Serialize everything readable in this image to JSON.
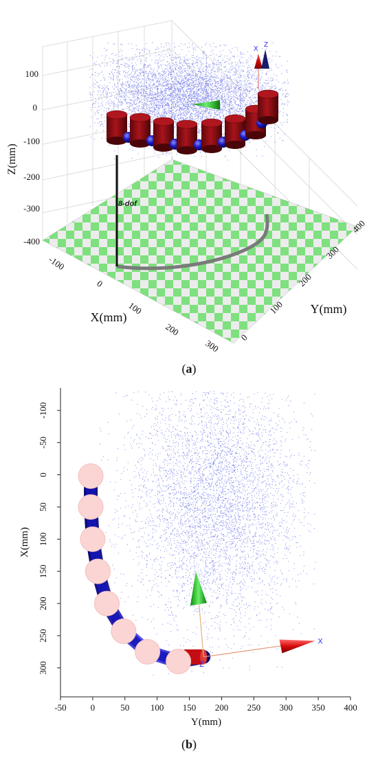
{
  "chart_data": [
    {
      "type": "scatter",
      "panel_label": "(a)",
      "label_paren_open": "(",
      "label_letter": "a",
      "label_paren_close": ")",
      "xlabel": "X(mm)",
      "ylabel": "Y(mm)",
      "zlabel": "Z(mm)",
      "x_ticks": [
        "-100",
        "0",
        "100",
        "200",
        "300"
      ],
      "y_ticks": [
        "0",
        "100",
        "200",
        "300",
        "400"
      ],
      "z_ticks": [
        "100",
        "0",
        "-100",
        "-200",
        "-300",
        "-400"
      ],
      "annotation": "8-dof",
      "frame_labels": [
        "X",
        "Z"
      ],
      "robot": {
        "joints": 8,
        "color": "#8b0d12",
        "link_color": "#1010b0"
      },
      "floor_colors": [
        "#7ee07e",
        "#ececec"
      ],
      "scatter_color": "#1f2fe0",
      "workspace_center_mm": {
        "x": 120,
        "y": 230,
        "z": 80
      }
    },
    {
      "type": "scatter",
      "panel_label": "(b)",
      "label_paren_open": "(",
      "label_letter": "b",
      "label_paren_close": ")",
      "xlabel": "Y(mm)",
      "ylabel": "X(mm)",
      "xlim": [
        -50,
        400
      ],
      "ylim": [
        -135,
        345
      ],
      "x_ticks": [
        -50,
        0,
        50,
        100,
        150,
        200,
        250,
        300,
        350,
        400
      ],
      "y_ticks": [
        -100,
        -50,
        0,
        50,
        100,
        150,
        200,
        250,
        300
      ],
      "y_inverted": true,
      "frame_labels": [
        "X",
        "Z"
      ],
      "scatter": {
        "center_y": 190,
        "center_x": 40,
        "spread_y": 65,
        "spread_x": 95,
        "color": "#1f2fe0"
      },
      "joints": [
        {
          "y": -3,
          "x": 2
        },
        {
          "y": -3,
          "x": 50
        },
        {
          "y": 0,
          "x": 100
        },
        {
          "y": 8,
          "x": 150
        },
        {
          "y": 22,
          "x": 200
        },
        {
          "y": 48,
          "x": 243
        },
        {
          "y": 85,
          "x": 275
        },
        {
          "y": 133,
          "x": 290
        }
      ],
      "joint_color": "#fbd5d3",
      "link_color": "#1515b8",
      "end_effector": {
        "y": 172,
        "x": 283
      },
      "frame_origin": {
        "y": 172,
        "x": 283
      },
      "frame_axis_x_tip": {
        "y": 345,
        "x": 258
      },
      "frame_axis_green_tip": {
        "y": 160,
        "x": 150
      }
    }
  ]
}
